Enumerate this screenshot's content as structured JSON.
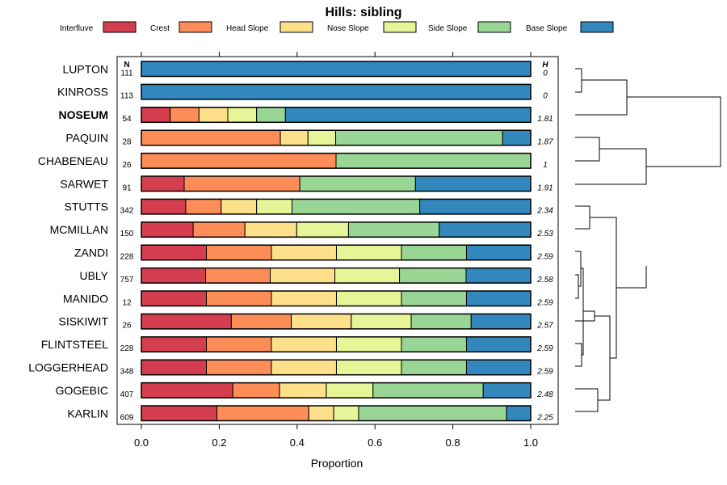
{
  "chart_data": {
    "type": "bar",
    "stacked": true,
    "orientation": "horizontal",
    "title": "Hills: sibling",
    "xlabel": "Proportion",
    "xlim": [
      0,
      1
    ],
    "x_ticks": [
      "0.0",
      "0.2",
      "0.4",
      "0.6",
      "0.8",
      "1.0"
    ],
    "legend": {
      "placement": "top",
      "entries": [
        {
          "name": "Interfluve",
          "color": "#D53E4F"
        },
        {
          "name": "Crest",
          "color": "#FC8D59"
        },
        {
          "name": "Head Slope",
          "color": "#FEE08B"
        },
        {
          "name": "Nose Slope",
          "color": "#E6F598"
        },
        {
          "name": "Side Slope",
          "color": "#99D594"
        },
        {
          "name": "Base Slope",
          "color": "#3288BD"
        }
      ]
    },
    "n_header": "N",
    "h_header": "H",
    "highlight": "NOSEUM",
    "rows": [
      {
        "name": "LUPTON",
        "n": "111",
        "h": "0",
        "values": [
          0,
          0,
          0,
          0,
          0,
          1.0
        ]
      },
      {
        "name": "KINROSS",
        "n": "113",
        "h": "0",
        "values": [
          0,
          0,
          0,
          0,
          0,
          1.0
        ]
      },
      {
        "name": "NOSEUM",
        "n": "54",
        "h": "1.81",
        "values": [
          0.074,
          0.074,
          0.074,
          0.074,
          0.074,
          0.63
        ]
      },
      {
        "name": "PAQUIN",
        "n": "28",
        "h": "1.87",
        "values": [
          0,
          0.357,
          0.071,
          0.071,
          0.429,
          0.072
        ]
      },
      {
        "name": "CHABENEAU",
        "n": "26",
        "h": "1",
        "values": [
          0,
          0.5,
          0,
          0,
          0.5,
          0
        ]
      },
      {
        "name": "SARWET",
        "n": "91",
        "h": "1.91",
        "values": [
          0.11,
          0.297,
          0,
          0,
          0.297,
          0.296
        ]
      },
      {
        "name": "STUTTS",
        "n": "342",
        "h": "2.34",
        "values": [
          0.114,
          0.091,
          0.091,
          0.091,
          0.328,
          0.285
        ]
      },
      {
        "name": "MCMILLAN",
        "n": "150",
        "h": "2.53",
        "values": [
          0.133,
          0.133,
          0.133,
          0.133,
          0.233,
          0.235
        ]
      },
      {
        "name": "ZANDI",
        "n": "228",
        "h": "2.59",
        "values": [
          0.167,
          0.167,
          0.167,
          0.167,
          0.167,
          0.165
        ]
      },
      {
        "name": "UBLY",
        "n": "757",
        "h": "2.58",
        "values": [
          0.165,
          0.166,
          0.166,
          0.166,
          0.171,
          0.166
        ]
      },
      {
        "name": "MANIDO",
        "n": "12",
        "h": "2.59",
        "values": [
          0.167,
          0.167,
          0.167,
          0.167,
          0.167,
          0.165
        ]
      },
      {
        "name": "SISKIWIT",
        "n": "26",
        "h": "2.57",
        "values": [
          0.231,
          0.154,
          0.154,
          0.154,
          0.154,
          0.153
        ]
      },
      {
        "name": "FLINTSTEEL",
        "n": "228",
        "h": "2.59",
        "values": [
          0.167,
          0.167,
          0.167,
          0.167,
          0.167,
          0.165
        ]
      },
      {
        "name": "LOGGERHEAD",
        "n": "348",
        "h": "2.59",
        "values": [
          0.167,
          0.167,
          0.167,
          0.167,
          0.167,
          0.165
        ]
      },
      {
        "name": "GOGEBIC",
        "n": "407",
        "h": "2.48",
        "values": [
          0.235,
          0.12,
          0.12,
          0.12,
          0.283,
          0.122
        ]
      },
      {
        "name": "KARLIN",
        "n": "609",
        "h": "2.25",
        "values": [
          0.194,
          0.236,
          0.064,
          0.064,
          0.38,
          0.062
        ]
      }
    ]
  }
}
